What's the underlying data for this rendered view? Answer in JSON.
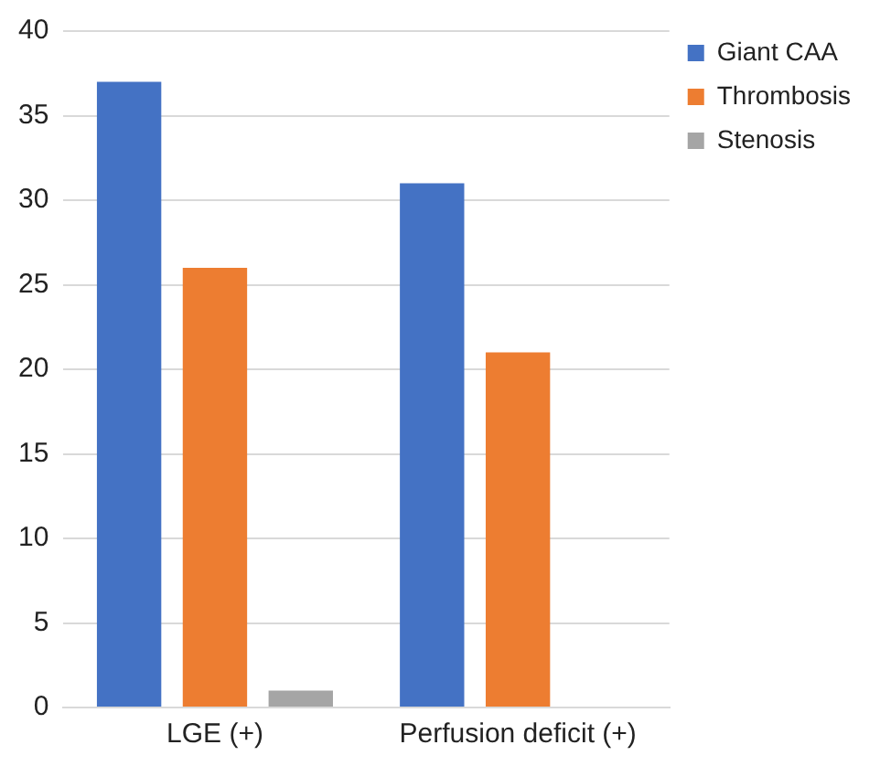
{
  "chart_data": {
    "type": "bar",
    "categories": [
      "LGE (+)",
      "Perfusion deficit (+)"
    ],
    "series": [
      {
        "name": "Giant CAA",
        "color": "#4472c4",
        "values": [
          37,
          31
        ]
      },
      {
        "name": "Thrombosis",
        "color": "#ed7d31",
        "values": [
          26,
          21
        ]
      },
      {
        "name": "Stenosis",
        "color": "#a5a5a5",
        "values": [
          1,
          0
        ]
      }
    ],
    "ylim": [
      0,
      40
    ],
    "yticks": [
      0,
      5,
      10,
      15,
      20,
      25,
      30,
      35,
      40
    ],
    "grid": "y",
    "legend": "top right"
  }
}
